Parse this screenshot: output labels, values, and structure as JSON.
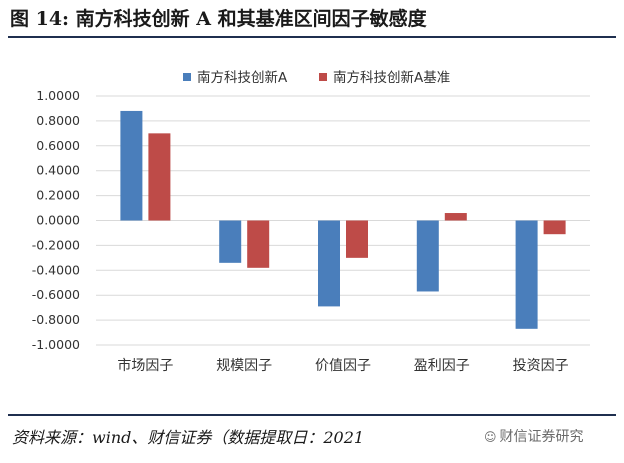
{
  "title": "图 14:  南方科技创新 A 和其基准区间因子敏感度",
  "source": "资料来源：wind、财信证券（数据提取日：2021",
  "watermark": {
    "text": "财信证券研究",
    "icon": "wechat-icon"
  },
  "colors": {
    "series_a": "#4a7ebb",
    "series_b": "#be4b48",
    "grid": "#d9d9d9",
    "axis": "#bfbfbf",
    "text": "#333333"
  },
  "chart_data": {
    "type": "bar",
    "categories": [
      "市场因子",
      "规模因子",
      "价值因子",
      "盈利因子",
      "投资因子"
    ],
    "series": [
      {
        "name": "南方科技创新A",
        "values": [
          0.88,
          -0.34,
          -0.69,
          -0.57,
          -0.87
        ]
      },
      {
        "name": "南方科技创新A基准",
        "values": [
          0.7,
          -0.38,
          -0.3,
          0.06,
          -0.11
        ]
      }
    ],
    "ylim": [
      -1.0,
      1.0
    ],
    "yticks": [
      "1.0000",
      "0.8000",
      "0.6000",
      "0.4000",
      "0.2000",
      "0.0000",
      "-0.2000",
      "-0.4000",
      "-0.6000",
      "-0.8000",
      "-1.0000"
    ],
    "legend": "top-center",
    "grid": true
  }
}
